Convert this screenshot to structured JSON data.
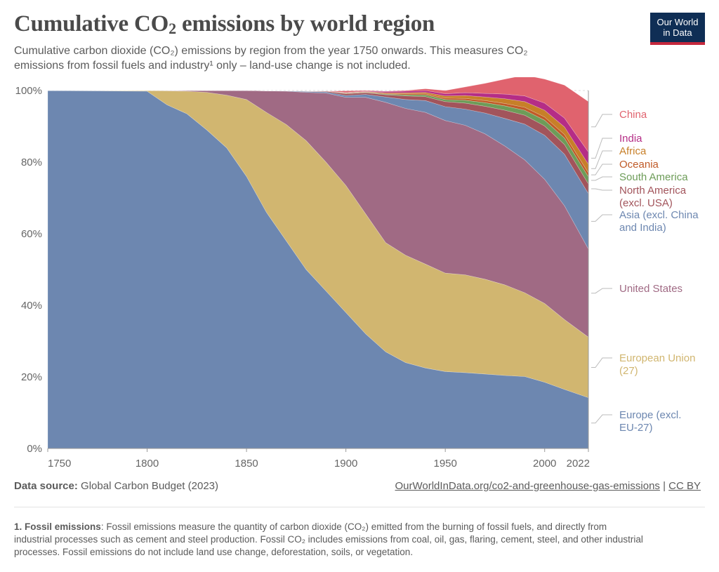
{
  "header": {
    "title_main": "Cumulative CO",
    "title_sub": "2",
    "title_rest": " emissions by world region",
    "subtitle_line1": "Cumulative carbon dioxide (CO₂) emissions by region from the year 1750 onwards. This measures CO₂",
    "subtitle_line2": "emissions from fossil fuels and industry¹ only – land-use change is not included."
  },
  "logo": {
    "line1": "Our World",
    "line2": "in Data"
  },
  "footer": {
    "source_label": "Data source:",
    "source_text": " Global Carbon Budget (2023)",
    "url": "OurWorldInData.org/co2-and-greenhouse-gas-emissions",
    "separator": " | ",
    "license": "CC BY"
  },
  "note": {
    "label": "1. Fossil emissions",
    "text": ": Fossil emissions measure the quantity of carbon dioxide (CO₂) emitted from the burning of fossil fuels, and directly from industrial processes such as cement and steel production. Fossil CO₂ includes emissions from coal, oil, gas, flaring, cement, steel, and other industrial processes. Fossil emissions do not include land use change, deforestation, soils, or vegetation."
  },
  "chart_data": {
    "type": "area",
    "stacked": true,
    "normalized": true,
    "title": "Cumulative CO₂ emissions by world region",
    "xlabel": "",
    "ylabel": "",
    "xlim": [
      1750,
      2022
    ],
    "ylim": [
      0,
      100
    ],
    "x_ticks": [
      1750,
      1800,
      1850,
      1900,
      1950,
      2000,
      2022
    ],
    "y_ticks": [
      "0%",
      "20%",
      "40%",
      "60%",
      "80%",
      "100%"
    ],
    "x": [
      1750,
      1800,
      1810,
      1820,
      1830,
      1840,
      1850,
      1860,
      1870,
      1880,
      1890,
      1900,
      1910,
      1920,
      1930,
      1940,
      1950,
      1960,
      1970,
      1980,
      1990,
      2000,
      2010,
      2022
    ],
    "series": [
      {
        "name": "Europe (excl. EU-27)",
        "label": "Europe (excl.\nEU-27)",
        "color": "#6d87b0",
        "values": [
          100,
          99.8,
          96,
          93.5,
          89,
          84,
          76,
          66,
          58,
          50,
          44,
          38,
          32,
          27,
          24,
          22.5,
          21.5,
          21.2,
          20.8,
          20.4,
          20.1,
          18.5,
          16.5,
          14.2
        ]
      },
      {
        "name": "European Union (27)",
        "label": "European Union\n(27)",
        "color": "#d1b670",
        "values": [
          0,
          0.2,
          3.9,
          6.3,
          10.5,
          14.7,
          21.5,
          27.9,
          32.5,
          36,
          36,
          35.5,
          33.5,
          30.5,
          30,
          29,
          27.5,
          27.3,
          26.5,
          25.3,
          23.4,
          22,
          19.5,
          16.9
        ]
      },
      {
        "name": "United States",
        "label": "United States",
        "color": "#a06a84",
        "values": [
          0,
          0,
          0.1,
          0.2,
          0.5,
          1.3,
          2.5,
          6,
          9.3,
          13.5,
          19.3,
          24.6,
          32.6,
          39.2,
          41,
          42.4,
          42.6,
          41.8,
          40.6,
          38.8,
          37.1,
          34.7,
          31.8,
          24.6
        ]
      },
      {
        "name": "Asia (excl. China and India)",
        "label": "Asia (excl. China\nand India)",
        "color": "#6d87b0",
        "values": [
          0,
          0,
          0,
          0,
          0,
          0,
          0,
          0,
          0.1,
          0.2,
          0.3,
          0.5,
          0.8,
          1.5,
          2.5,
          3.3,
          3.9,
          4.5,
          5.8,
          7.7,
          10,
          12.3,
          14.4,
          15.5
        ]
      },
      {
        "name": "North America (excl. USA)",
        "label": "North America\n(excl. USA)",
        "color": "#a2545b",
        "values": [
          0,
          0,
          0,
          0,
          0,
          0,
          0,
          0,
          0,
          0.1,
          0.2,
          0.5,
          0.5,
          0.6,
          1,
          1.1,
          1.4,
          1.7,
          1.9,
          2.3,
          2.5,
          2.6,
          2.7,
          2.7
        ]
      },
      {
        "name": "South America",
        "label": "South America",
        "color": "#6d9c58",
        "values": [
          0,
          0,
          0,
          0,
          0,
          0,
          0,
          0,
          0,
          0,
          0,
          0.1,
          0.1,
          0.2,
          0.3,
          0.5,
          0.6,
          0.8,
          1,
          1.2,
          1.4,
          1.6,
          1.8,
          2
        ]
      },
      {
        "name": "Oceania",
        "label": "Oceania",
        "color": "#c05a27",
        "values": [
          0,
          0,
          0,
          0,
          0,
          0,
          0,
          0,
          0,
          0,
          0,
          0.1,
          0.1,
          0.2,
          0.3,
          0.3,
          0.4,
          0.5,
          0.6,
          0.7,
          0.8,
          0.9,
          1,
          1.1
        ]
      },
      {
        "name": "Africa",
        "label": "Africa",
        "color": "#c77f28",
        "values": [
          0,
          0,
          0,
          0,
          0,
          0,
          0,
          0,
          0,
          0,
          0,
          0.1,
          0.1,
          0.2,
          0.3,
          0.4,
          0.6,
          0.8,
          1,
          1.3,
          1.6,
          1.9,
          2.1,
          2.4
        ]
      },
      {
        "name": "India",
        "label": "India",
        "color": "#b52d86",
        "values": [
          0,
          0,
          0,
          0,
          0,
          0,
          0,
          0,
          0,
          0,
          0,
          0.1,
          0.1,
          0.3,
          0.4,
          0.5,
          0.6,
          0.8,
          1,
          1.3,
          1.6,
          2,
          2.5,
          3.4
        ]
      },
      {
        "name": "China",
        "label": "China",
        "color": "#e0636e",
        "values": [
          0,
          0,
          0,
          0,
          0,
          0,
          0,
          0,
          0,
          0,
          0,
          0.4,
          0.2,
          0.1,
          0.2,
          0.5,
          0.9,
          1.6,
          2.8,
          4.2,
          5.8,
          6.7,
          9.2,
          14.1
        ]
      }
    ]
  }
}
